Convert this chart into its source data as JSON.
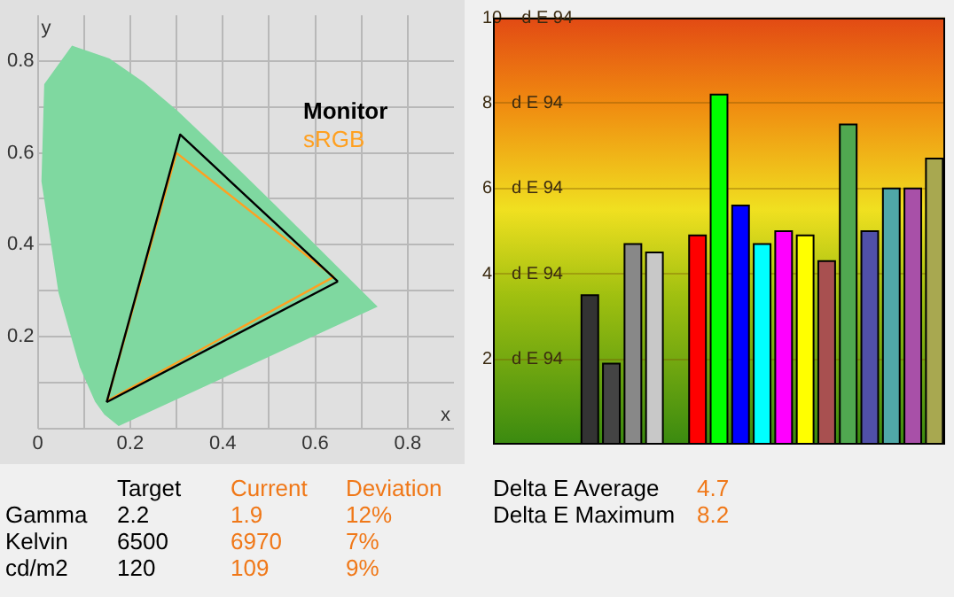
{
  "chart_data": [
    {
      "type": "line",
      "xlabel": "x",
      "ylabel": "y",
      "xlim": [
        0,
        0.9
      ],
      "ylim": [
        0,
        0.9
      ],
      "xticks": [
        0,
        {
          "value": 0.1,
          "label": null
        },
        0.2,
        {
          "value": 0.3,
          "label": null
        },
        0.4,
        {
          "value": 0.5,
          "label": null
        },
        0.6,
        {
          "value": 0.7,
          "label": null
        },
        0.8
      ],
      "yticks": [
        {
          "value": 0,
          "label": null
        },
        {
          "value": 0.1,
          "label": null
        },
        0.2,
        {
          "value": 0.3,
          "label": null
        },
        0.4,
        {
          "value": 0.5,
          "label": null
        },
        0.6,
        {
          "value": 0.7,
          "label": null
        },
        0.8
      ],
      "grid": true,
      "marker": "none",
      "line_style": "solid",
      "series": [
        {
          "name": "Monitor",
          "color": "#000000",
          "x": [
            0.149,
            0.308,
            0.649
          ],
          "values": [
            0.057,
            0.64,
            0.32
          ]
        },
        {
          "name": "sRGB",
          "color": "#ffa020",
          "x": [
            0.15,
            0.3,
            0.64
          ],
          "values": [
            0.06,
            0.6,
            0.33
          ]
        },
        {
          "type": "line",
          "color": "#000000",
          "x": [
            0.149,
            0.649
          ],
          "values": [
            0.057,
            0.32
          ]
        },
        {
          "type": "line",
          "color": "#ffa020",
          "x": [
            0.15,
            0.64
          ],
          "values": [
            0.06,
            0.33
          ]
        },
        {
          "type": "area",
          "color": "#7fd8a0",
          "x": [
            0.175,
            0.144,
            0.124,
            0.091,
            0.045,
            0.008,
            0.014,
            0.074,
            0.155,
            0.229,
            0.302,
            0.373,
            0.444,
            0.513,
            0.576,
            0.627,
            0.666,
            0.735,
            0.175
          ],
          "values": [
            0.005,
            0.03,
            0.058,
            0.133,
            0.295,
            0.538,
            0.75,
            0.834,
            0.806,
            0.754,
            0.692,
            0.624,
            0.555,
            0.487,
            0.424,
            0.373,
            0.334,
            0.265,
            0.005
          ]
        }
      ]
    },
    {
      "type": "bar",
      "categories": [
        null,
        null,
        null,
        null,
        null,
        null,
        null,
        null,
        null,
        null,
        null,
        null,
        null,
        null,
        null,
        null,
        null,
        null,
        null,
        null,
        null
      ],
      "values": [
        null,
        null,
        null,
        null,
        3.5,
        1.9,
        4.7,
        4.5,
        null,
        4.9,
        8.2,
        5.6,
        4.7,
        5.0,
        4.9,
        4.3,
        7.5,
        5.0,
        6.0,
        6.0,
        6.7
      ],
      "colors": [
        "#000000",
        "#000000",
        "#000000",
        "#000000",
        "#333333",
        "#444444",
        "#888888",
        "#c8c8c8",
        "#000000",
        "#ff0000",
        "#00ff00",
        "#0000ff",
        "#00ffff",
        "#ff00ff",
        "#ffff00",
        "#a85050",
        "#50a850",
        "#5050a8",
        "#50a8a8",
        "#a850a8",
        "#a8a850"
      ],
      "ylabel": "d E 94",
      "ylim": [
        0,
        10
      ],
      "yticks": [
        2,
        4,
        6,
        8,
        10
      ],
      "grid": "y",
      "tick_labels": "y"
    },
    {
      "type": "other",
      "annotations": [
        "Target",
        "Current",
        "Deviation",
        "Gamma",
        "2.2",
        "1.9",
        "12%",
        "Kelvin",
        "6500",
        "6970",
        "7%",
        "cd/m2",
        "120",
        "109",
        "9%"
      ]
    },
    {
      "type": "other",
      "annotations": [
        "Delta E Average",
        "4.7",
        "Delta E Maximum",
        "8.2"
      ]
    }
  ]
}
